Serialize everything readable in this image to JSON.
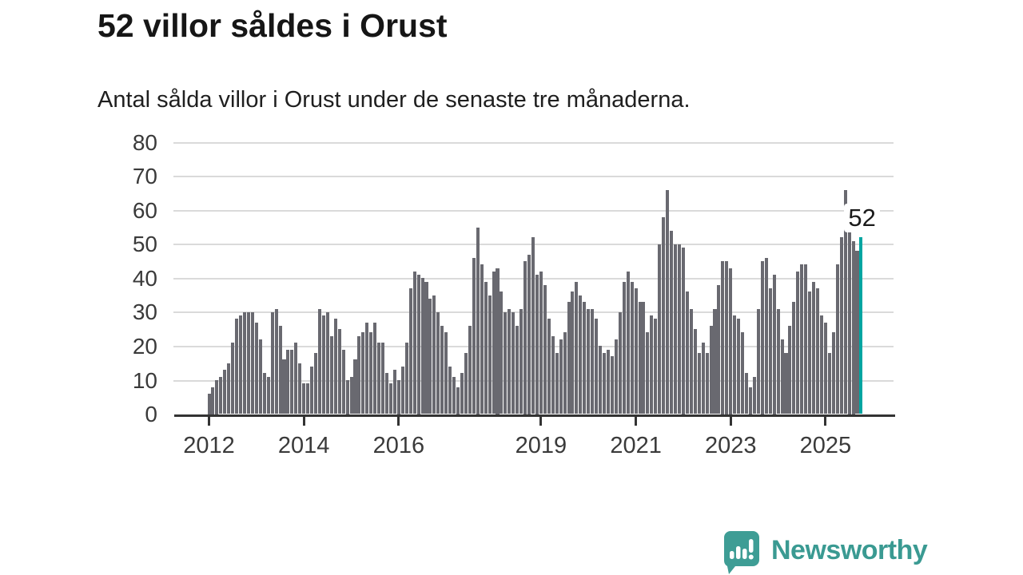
{
  "header": {
    "title": "52 villor såldes i Orust",
    "subtitle": "Antal sålda villor i Orust under de senaste tre månaderna."
  },
  "chart_data": {
    "type": "bar",
    "title": "52 villor såldes i Orust",
    "subtitle": "Antal sålda villor i Orust under de senaste tre månaderna.",
    "x_start": "2012-01",
    "x_frequency": "monthly",
    "values": [
      6,
      8,
      10,
      11,
      13,
      15,
      21,
      28,
      29,
      30,
      30,
      30,
      27,
      22,
      12,
      11,
      30,
      31,
      26,
      16,
      19,
      19,
      21,
      15,
      9,
      9,
      14,
      18,
      31,
      29,
      30,
      23,
      28,
      25,
      19,
      10,
      11,
      16,
      23,
      24,
      27,
      24,
      27,
      21,
      21,
      12,
      9,
      13,
      10,
      14,
      21,
      37,
      42,
      41,
      40,
      39,
      34,
      35,
      30,
      26,
      24,
      14,
      11,
      8,
      12,
      18,
      26,
      46,
      55,
      44,
      39,
      35,
      42,
      43,
      36,
      30,
      31,
      30,
      26,
      31,
      45,
      47,
      52,
      41,
      42,
      38,
      28,
      23,
      18,
      22,
      24,
      33,
      36,
      39,
      35,
      33,
      31,
      31,
      28,
      20,
      18,
      19,
      17,
      22,
      30,
      39,
      42,
      39,
      37,
      33,
      33,
      24,
      29,
      28,
      50,
      58,
      66,
      54,
      50,
      50,
      49,
      36,
      31,
      25,
      18,
      21,
      18,
      26,
      31,
      38,
      45,
      45,
      43,
      29,
      28,
      24,
      12,
      8,
      11,
      31,
      45,
      46,
      37,
      41,
      31,
      22,
      18,
      26,
      33,
      42,
      44,
      44,
      36,
      39,
      37,
      29,
      27,
      18,
      24,
      44,
      52,
      66,
      55,
      51,
      48,
      52
    ],
    "highlight": {
      "index_from_end": 0,
      "value": 52,
      "label": "52",
      "color": "#00a5a1"
    },
    "bar_color": "#696970",
    "y_ticks": [
      0,
      10,
      20,
      30,
      40,
      50,
      60,
      70,
      80
    ],
    "ylim": [
      0,
      80
    ],
    "x_tick_labels": [
      "2012",
      "2014",
      "2016",
      "2019",
      "2021",
      "2023",
      "2025"
    ],
    "x_tick_month_index": [
      0,
      24,
      48,
      84,
      108,
      132,
      156
    ],
    "grid": "horizontal",
    "legend": "none",
    "axis_color": "#333333",
    "gridline_color": "#dadada"
  },
  "footer": {
    "brand": "Newsworthy",
    "brand_color": "#3a9a92",
    "logo_icon": "newsworthy-chart-speech-bubble-icon"
  }
}
